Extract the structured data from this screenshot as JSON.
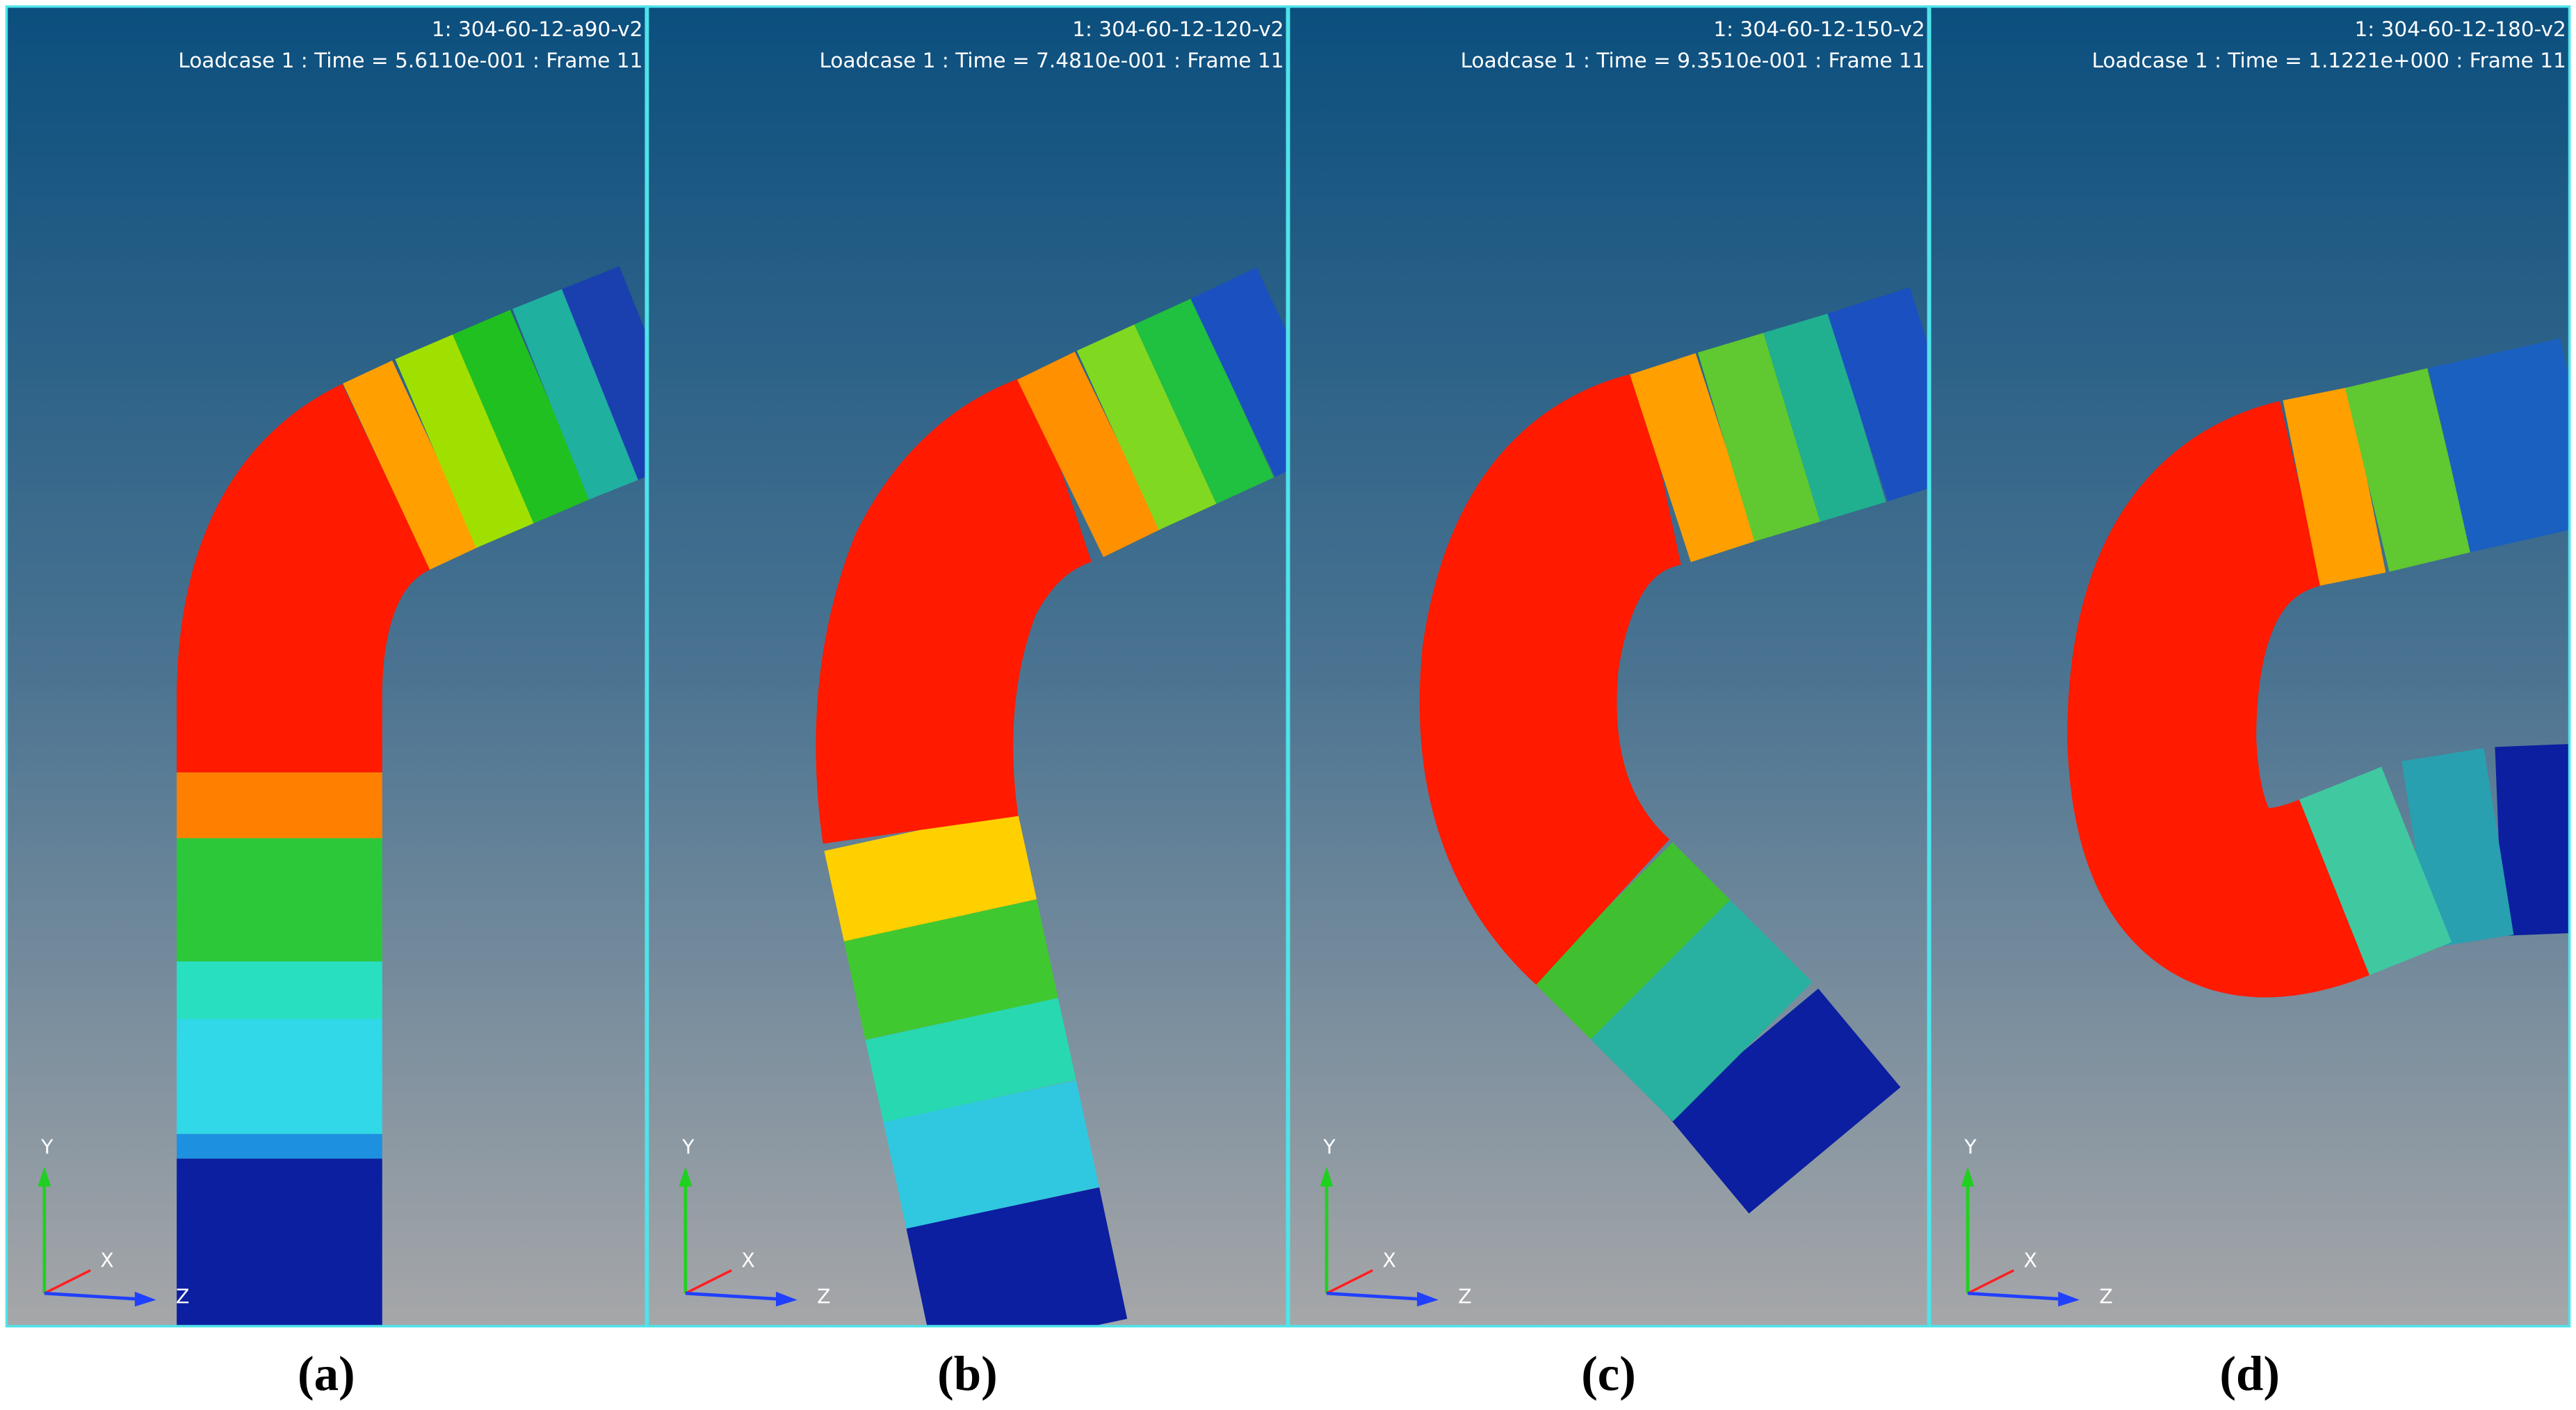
{
  "panels": [
    {
      "title": "1: 304-60-12-a90-v2",
      "subtitle": "Loadcase 1 : Time = 5.6110e-001 : Frame 11",
      "axes": {
        "y": "Y",
        "x": "X",
        "z": "Z"
      },
      "caption": "(a)"
    },
    {
      "title": "1: 304-60-12-120-v2",
      "subtitle": "Loadcase 1 : Time = 7.4810e-001 : Frame 11",
      "axes": {
        "y": "Y",
        "x": "X",
        "z": "Z"
      },
      "caption": "(b)"
    },
    {
      "title": "1: 304-60-12-150-v2",
      "subtitle": "Loadcase 1 : Time = 9.3510e-001 : Frame 11",
      "axes": {
        "y": "Y",
        "x": "X",
        "z": "Z"
      },
      "caption": "(c)"
    },
    {
      "title": "1: 304-60-12-180-v2",
      "subtitle": "Loadcase 1 : Time = 1.1221e+000 : Frame 11",
      "axes": {
        "y": "Y",
        "x": "X",
        "z": "Z"
      },
      "caption": "(d)"
    }
  ]
}
